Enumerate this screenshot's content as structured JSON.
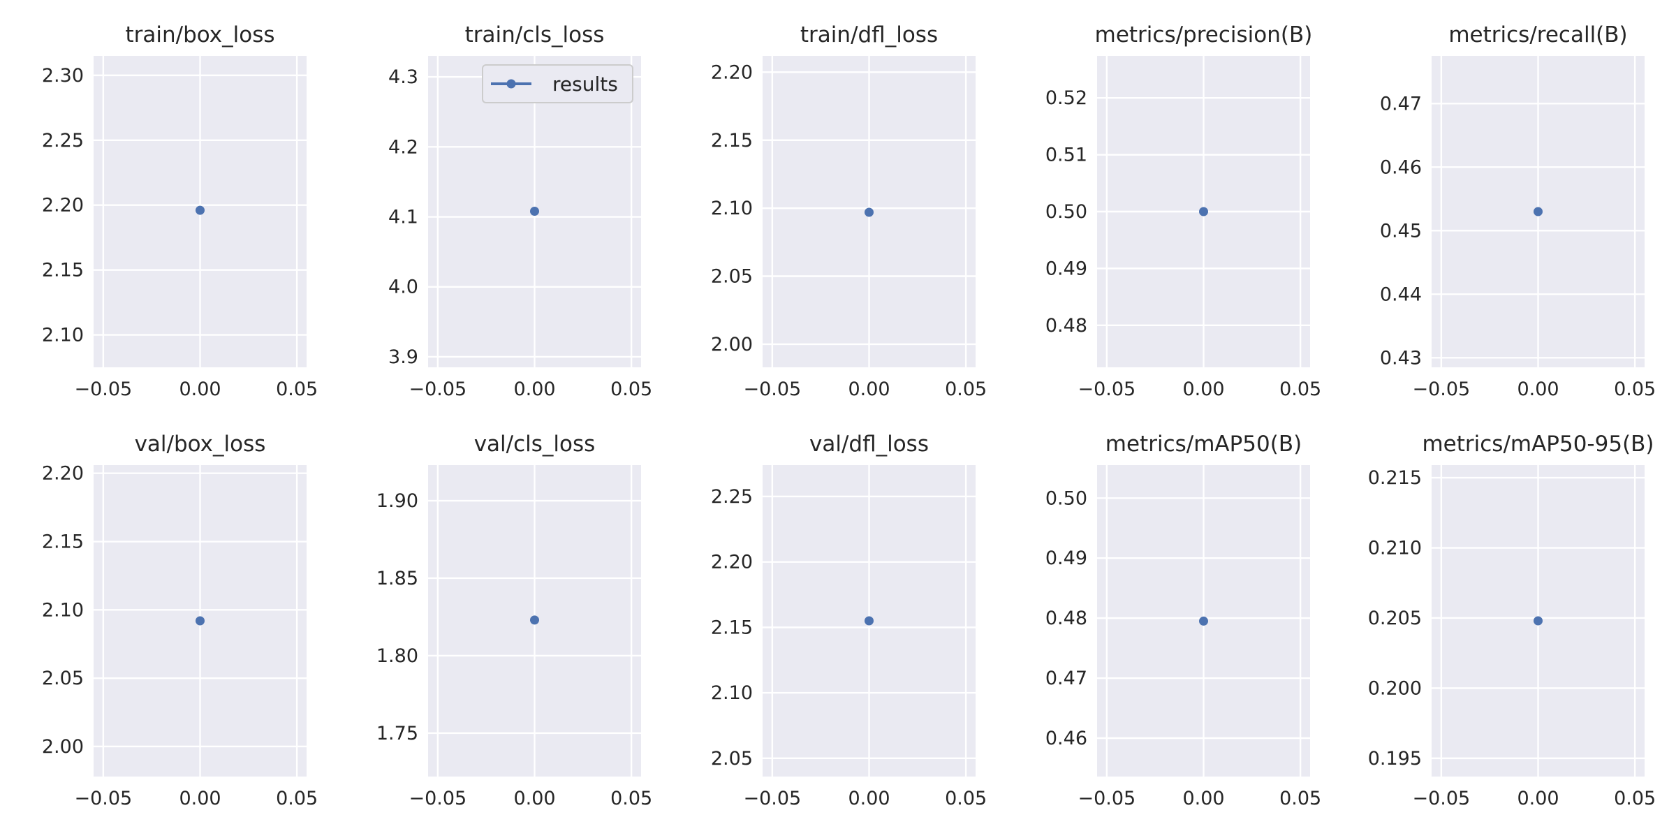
{
  "figure": {
    "legend_label": "results",
    "series_color": "#4c72b0",
    "background_color": "#eaeaf2",
    "legend_in_panel": 1
  },
  "chart_data": [
    {
      "type": "scatter",
      "title": "train/box_loss",
      "x": [
        0.0
      ],
      "y": [
        2.196
      ],
      "xlim": [
        -0.055,
        0.055
      ],
      "ylim": [
        2.075,
        2.315
      ],
      "xticks": [
        -0.05,
        0.0,
        0.05
      ],
      "xtick_labels": [
        "−0.05",
        "0.00",
        "0.05"
      ],
      "yticks": [
        2.1,
        2.15,
        2.2,
        2.25,
        2.3
      ],
      "ytick_labels": [
        "2.10",
        "2.15",
        "2.20",
        "2.25",
        "2.30"
      ]
    },
    {
      "type": "scatter",
      "title": "train/cls_loss",
      "x": [
        0.0
      ],
      "y": [
        4.108
      ],
      "xlim": [
        -0.055,
        0.055
      ],
      "ylim": [
        3.885,
        4.33
      ],
      "xticks": [
        -0.05,
        0.0,
        0.05
      ],
      "xtick_labels": [
        "−0.05",
        "0.00",
        "0.05"
      ],
      "yticks": [
        3.9,
        4.0,
        4.1,
        4.2,
        4.3
      ],
      "ytick_labels": [
        "3.9",
        "4.0",
        "4.1",
        "4.2",
        "4.3"
      ]
    },
    {
      "type": "scatter",
      "title": "train/dfl_loss",
      "x": [
        0.0
      ],
      "y": [
        2.097
      ],
      "xlim": [
        -0.055,
        0.055
      ],
      "ylim": [
        1.983,
        2.212
      ],
      "xticks": [
        -0.05,
        0.0,
        0.05
      ],
      "xtick_labels": [
        "−0.05",
        "0.00",
        "0.05"
      ],
      "yticks": [
        2.0,
        2.05,
        2.1,
        2.15,
        2.2
      ],
      "ytick_labels": [
        "2.00",
        "2.05",
        "2.10",
        "2.15",
        "2.20"
      ]
    },
    {
      "type": "scatter",
      "title": "metrics/precision(B)",
      "x": [
        0.0
      ],
      "y": [
        0.5
      ],
      "xlim": [
        -0.055,
        0.055
      ],
      "ylim": [
        0.4726,
        0.5274
      ],
      "xticks": [
        -0.05,
        0.0,
        0.05
      ],
      "xtick_labels": [
        "−0.05",
        "0.00",
        "0.05"
      ],
      "yticks": [
        0.48,
        0.49,
        0.5,
        0.51,
        0.52
      ],
      "ytick_labels": [
        "0.48",
        "0.49",
        "0.50",
        "0.51",
        "0.52"
      ]
    },
    {
      "type": "scatter",
      "title": "metrics/recall(B)",
      "x": [
        0.0
      ],
      "y": [
        0.453
      ],
      "xlim": [
        -0.055,
        0.055
      ],
      "ylim": [
        0.4285,
        0.4775
      ],
      "xticks": [
        -0.05,
        0.0,
        0.05
      ],
      "xtick_labels": [
        "−0.05",
        "0.00",
        "0.05"
      ],
      "yticks": [
        0.43,
        0.44,
        0.45,
        0.46,
        0.47
      ],
      "ytick_labels": [
        "0.43",
        "0.44",
        "0.45",
        "0.46",
        "0.47"
      ]
    },
    {
      "type": "scatter",
      "title": "val/box_loss",
      "x": [
        0.0
      ],
      "y": [
        2.092
      ],
      "xlim": [
        -0.055,
        0.055
      ],
      "ylim": [
        1.978,
        2.206
      ],
      "xticks": [
        -0.05,
        0.0,
        0.05
      ],
      "xtick_labels": [
        "−0.05",
        "0.00",
        "0.05"
      ],
      "yticks": [
        2.0,
        2.05,
        2.1,
        2.15,
        2.2
      ],
      "ytick_labels": [
        "2.00",
        "2.05",
        "2.10",
        "2.15",
        "2.20"
      ]
    },
    {
      "type": "scatter",
      "title": "val/cls_loss",
      "x": [
        0.0
      ],
      "y": [
        1.823
      ],
      "xlim": [
        -0.055,
        0.055
      ],
      "ylim": [
        1.722,
        1.923
      ],
      "xticks": [
        -0.05,
        0.0,
        0.05
      ],
      "xtick_labels": [
        "−0.05",
        "0.00",
        "0.05"
      ],
      "yticks": [
        1.75,
        1.8,
        1.85,
        1.9
      ],
      "ytick_labels": [
        "1.75",
        "1.80",
        "1.85",
        "1.90"
      ]
    },
    {
      "type": "scatter",
      "title": "val/dfl_loss",
      "x": [
        0.0
      ],
      "y": [
        2.155
      ],
      "xlim": [
        -0.055,
        0.055
      ],
      "ylim": [
        2.036,
        2.274
      ],
      "xticks": [
        -0.05,
        0.0,
        0.05
      ],
      "xtick_labels": [
        "−0.05",
        "0.00",
        "0.05"
      ],
      "yticks": [
        2.05,
        2.1,
        2.15,
        2.2,
        2.25
      ],
      "ytick_labels": [
        "2.05",
        "2.10",
        "2.15",
        "2.20",
        "2.25"
      ]
    },
    {
      "type": "scatter",
      "title": "metrics/mAP50(B)",
      "x": [
        0.0
      ],
      "y": [
        0.4795
      ],
      "xlim": [
        -0.055,
        0.055
      ],
      "ylim": [
        0.4536,
        0.5055
      ],
      "xticks": [
        -0.05,
        0.0,
        0.05
      ],
      "xtick_labels": [
        "−0.05",
        "0.00",
        "0.05"
      ],
      "yticks": [
        0.46,
        0.47,
        0.48,
        0.49,
        0.5
      ],
      "ytick_labels": [
        "0.46",
        "0.47",
        "0.48",
        "0.49",
        "0.50"
      ]
    },
    {
      "type": "scatter",
      "title": "metrics/mAP50-95(B)",
      "x": [
        0.0
      ],
      "y": [
        0.2048
      ],
      "xlim": [
        -0.055,
        0.055
      ],
      "ylim": [
        0.1937,
        0.2159
      ],
      "xticks": [
        -0.05,
        0.0,
        0.05
      ],
      "xtick_labels": [
        "−0.05",
        "0.00",
        "0.05"
      ],
      "yticks": [
        0.195,
        0.2,
        0.205,
        0.21,
        0.215
      ],
      "ytick_labels": [
        "0.195",
        "0.200",
        "0.205",
        "0.210",
        "0.215"
      ]
    }
  ]
}
